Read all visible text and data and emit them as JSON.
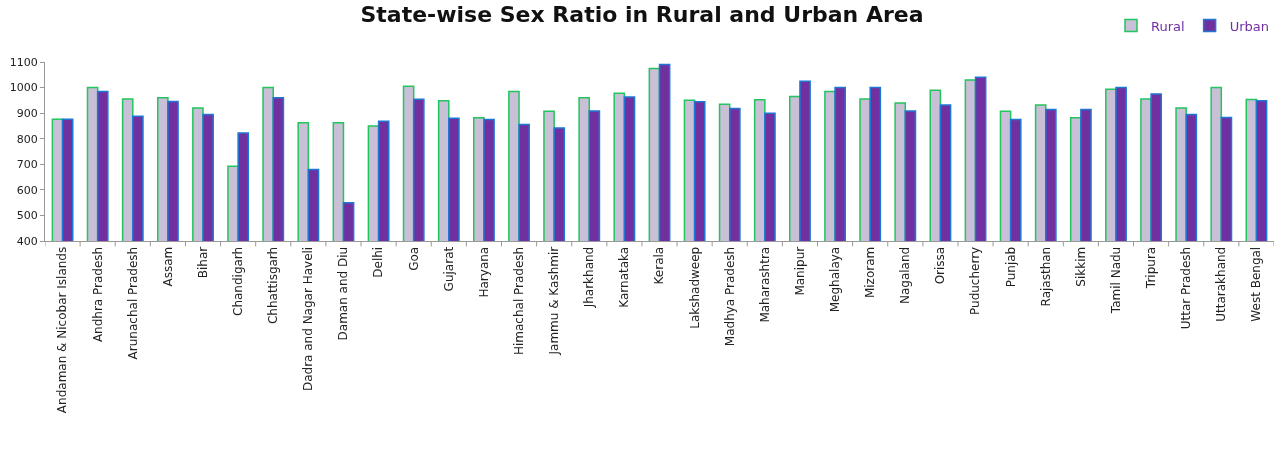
{
  "chart_data": {
    "type": "bar",
    "title": "State-wise Sex Ratio in Rural and Urban Area",
    "categories": [
      "Andaman & Nicobar Islands",
      "Andhra Pradesh",
      "Arunachal Pradesh",
      "Assam",
      "Bihar",
      "Chandigarh",
      "Chhattisgarh",
      "Dadra and Nagar Haveli",
      "Daman and Diu",
      "Delhi",
      "Goa",
      "Gujarat",
      "Haryana",
      "Himachal Pradesh",
      "Jammu & Kashmir",
      "Jharkhand",
      "Karnataka",
      "Kerala",
      "Lakshadweep",
      "Madhya Pradesh",
      "Maharashtra",
      "Manipur",
      "Meghalaya",
      "Mizoram",
      "Nagaland",
      "Orissa",
      "Puducherry",
      "Punjab",
      "Rajasthan",
      "Sikkim",
      "Tamil Nadu",
      "Tripura",
      "Uttar Pradesh",
      "Uttarakhand",
      "West Bengal"
    ],
    "series": [
      {
        "name": "Rural",
        "color": "#c9bfd6",
        "values": [
          876,
          1000,
          955,
          960,
          920,
          692,
          1000,
          862,
          862,
          850,
          1005,
          948,
          882,
          985,
          907,
          960,
          978,
          1075,
          950,
          935,
          952,
          965,
          985,
          955,
          940,
          990,
          1030,
          907,
          932,
          882,
          993,
          955,
          920,
          1000,
          953
        ]
      },
      {
        "name": "Urban",
        "color": "#7030a0",
        "values": [
          876,
          985,
          888,
          946,
          895,
          822,
          960,
          680,
          550,
          868,
          954,
          880,
          875,
          856,
          842,
          908,
          963,
          1090,
          945,
          918,
          900,
          1025,
          1000,
          1000,
          908,
          932,
          1040,
          875,
          914,
          914,
          1000,
          975,
          895,
          883,
          948
        ]
      }
    ],
    "ylim": [
      400,
      1100
    ],
    "yticks": [
      400,
      500,
      600,
      700,
      800,
      900,
      1000,
      1100
    ],
    "grid": false,
    "legend": "top right"
  }
}
